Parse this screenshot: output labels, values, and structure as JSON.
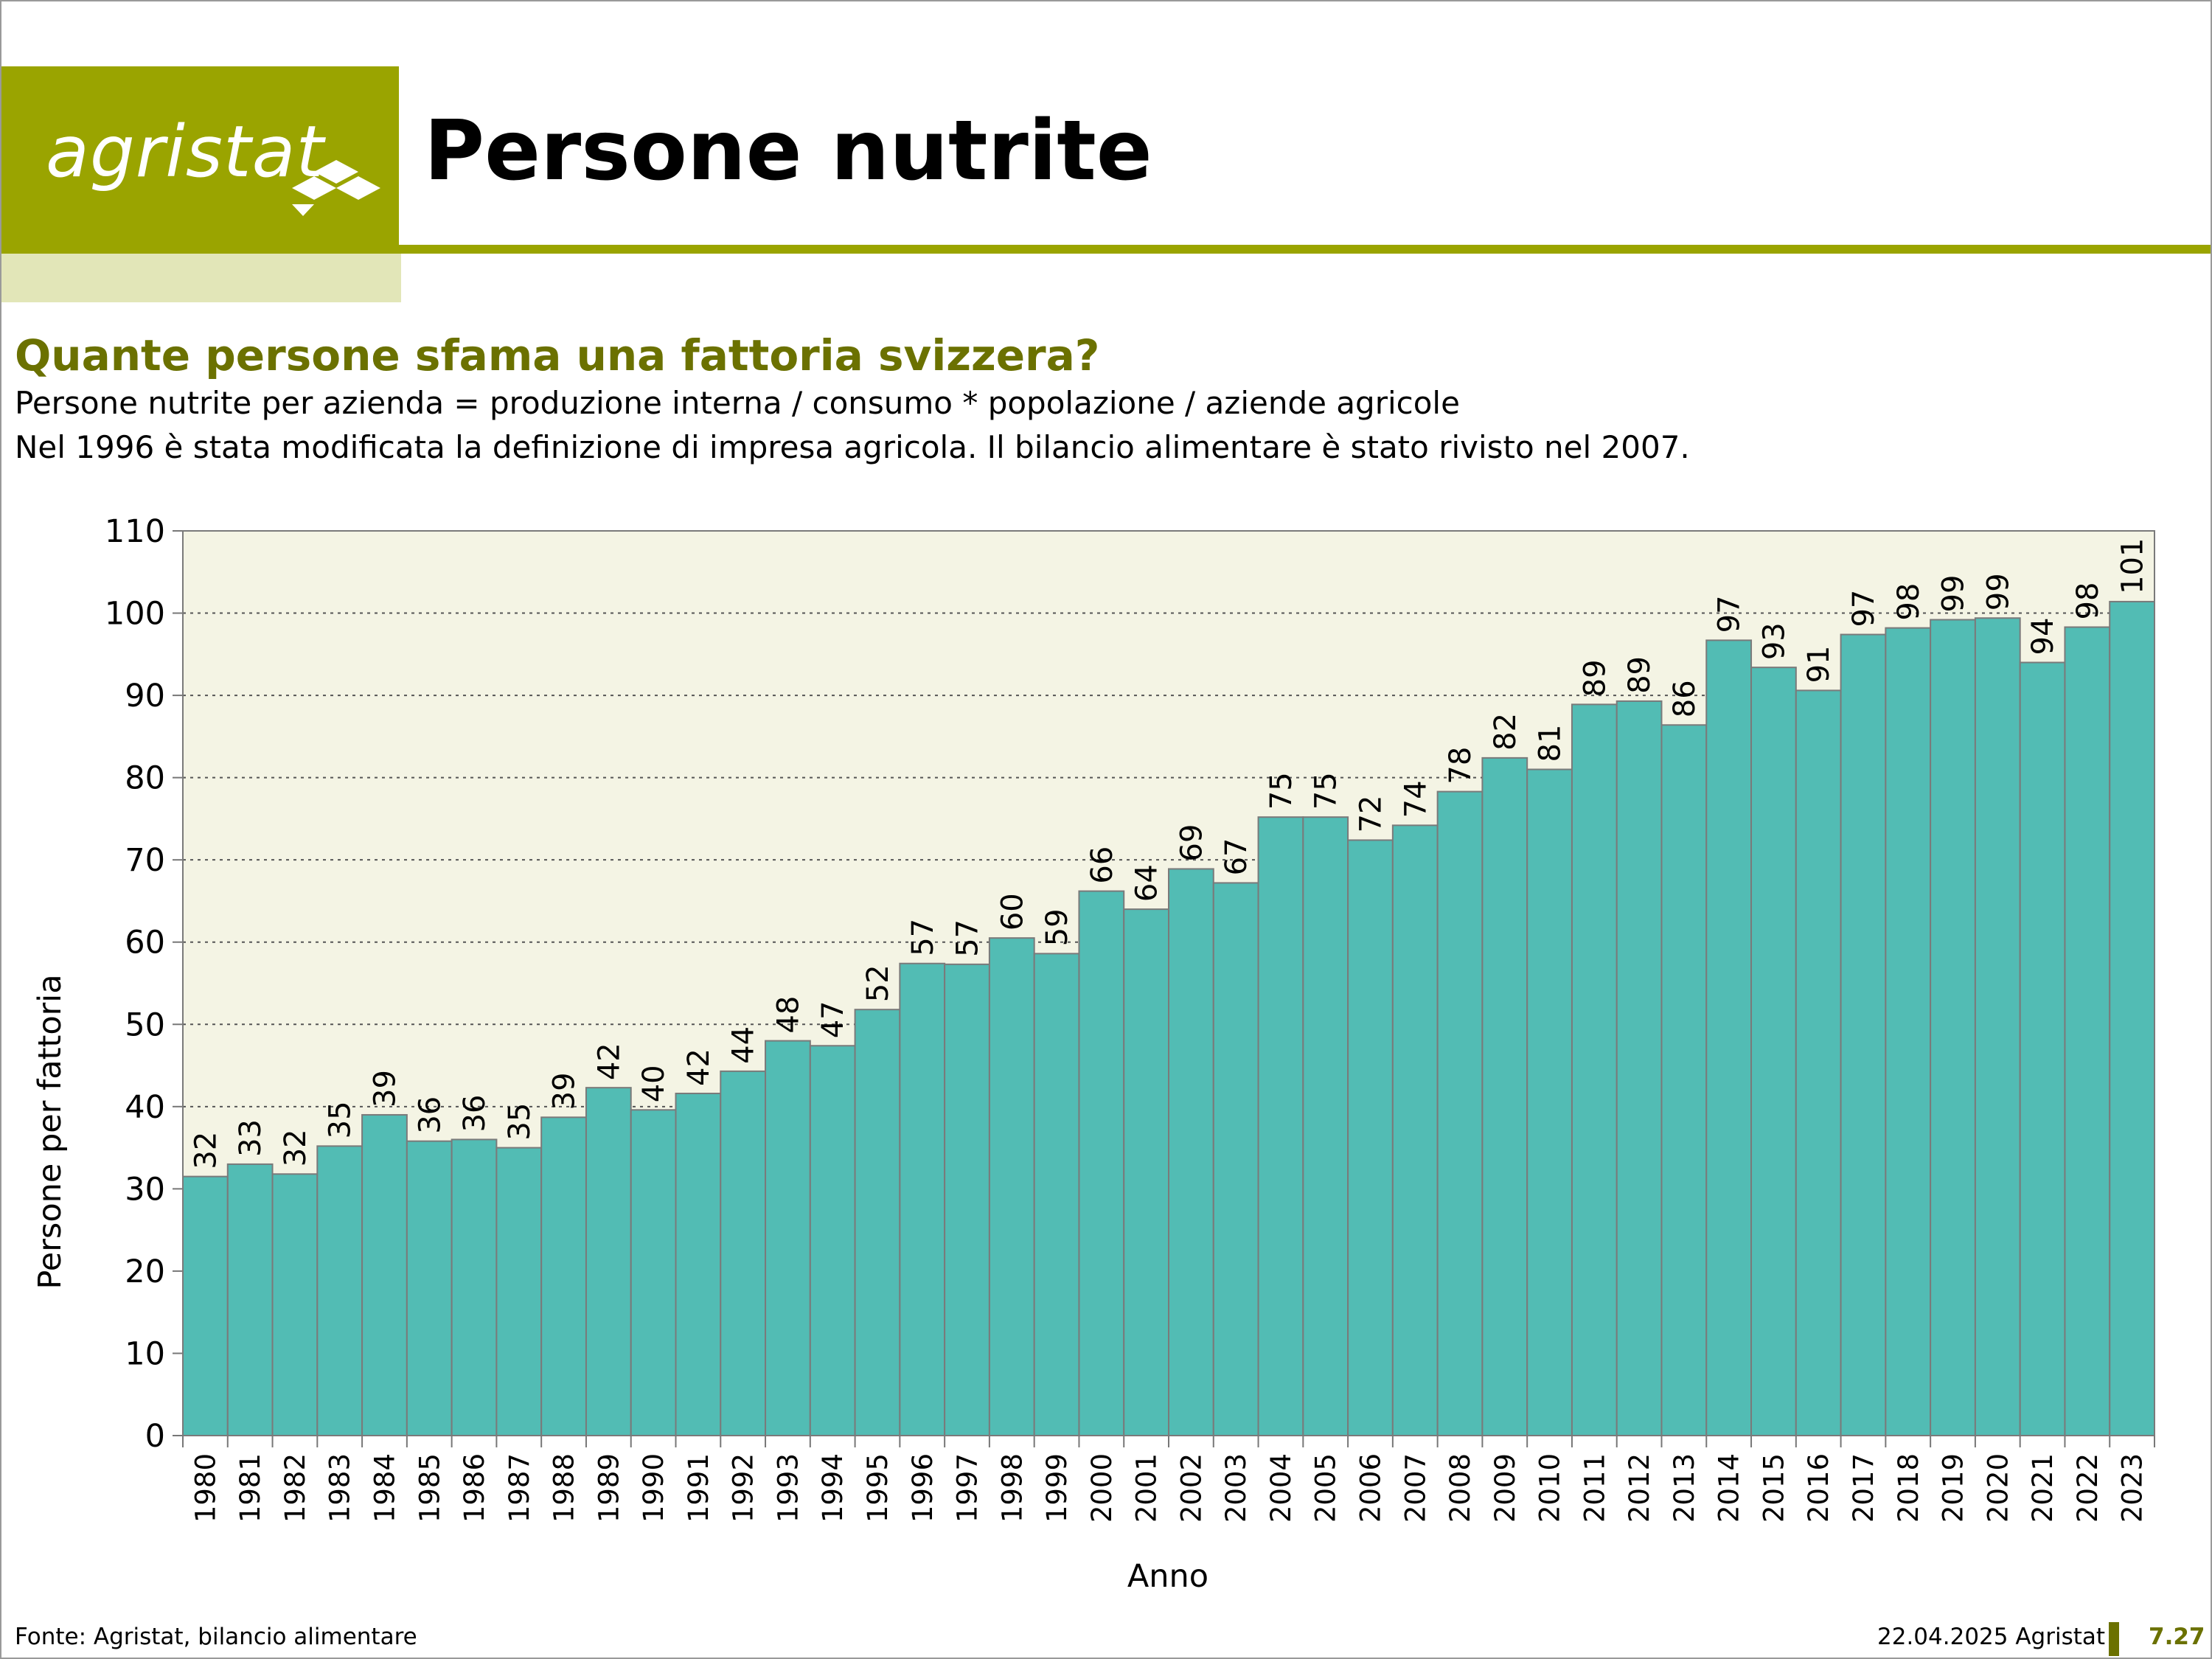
{
  "header": {
    "logo_text": "agristat",
    "title": "Persone nutrite"
  },
  "content": {
    "subtitle": "Quante persone sfama una fattoria svizzera?",
    "description_line1": "Persone nutrite per azienda = produzione interna / consumo * popolazione / aziende agricole",
    "description_line2": "Nel 1996 è stata modificata la definizione di impresa agricola. Il bilancio alimentare è stato rivisto nel 2007."
  },
  "colors": {
    "brand": "#9aa400",
    "brand_light": "#e2e6b8",
    "subtitle": "#6b7100",
    "bar": "#52bcb4",
    "plot_bg": "#f4f4e4"
  },
  "chart_data": {
    "type": "bar",
    "xlabel": "Anno",
    "ylabel": "Persone per fattoria",
    "ylim": [
      0,
      110
    ],
    "yticks": [
      0,
      10,
      20,
      30,
      40,
      50,
      60,
      70,
      80,
      90,
      100,
      110
    ],
    "grid": true,
    "categories": [
      "1980",
      "1981",
      "1982",
      "1983",
      "1984",
      "1985",
      "1986",
      "1987",
      "1988",
      "1989",
      "1990",
      "1991",
      "1992",
      "1993",
      "1994",
      "1995",
      "1996",
      "1997",
      "1998",
      "1999",
      "2000",
      "2001",
      "2002",
      "2003",
      "2004",
      "2005",
      "2006",
      "2007",
      "2008",
      "2009",
      "2010",
      "2011",
      "2012",
      "2013",
      "2014",
      "2015",
      "2016",
      "2017",
      "2018",
      "2019",
      "2020",
      "2021",
      "2022",
      "2023"
    ],
    "values": [
      31.5,
      33,
      31.8,
      35.2,
      39,
      35.8,
      36,
      35,
      38.7,
      42.3,
      39.6,
      41.6,
      44.3,
      48,
      47.4,
      51.8,
      57.4,
      57.3,
      60.5,
      58.6,
      66.2,
      64,
      68.9,
      67.2,
      75.2,
      75.2,
      72.4,
      74.2,
      78.3,
      82.4,
      81,
      88.9,
      89.3,
      86.4,
      96.7,
      93.4,
      90.6,
      97.4,
      98.2,
      99.2,
      99.4,
      94,
      98.3,
      101.4
    ],
    "labels": [
      "32",
      "33",
      "32",
      "35",
      "39",
      "36",
      "36",
      "35",
      "39",
      "42",
      "40",
      "42",
      "44",
      "48",
      "47",
      "52",
      "57",
      "57",
      "60",
      "59",
      "66",
      "64",
      "69",
      "67",
      "75",
      "75",
      "72",
      "74",
      "78",
      "82",
      "81",
      "89",
      "89",
      "86",
      "97",
      "93",
      "91",
      "97",
      "98",
      "99",
      "99",
      "94",
      "98",
      "101"
    ]
  },
  "footer": {
    "source": "Fonte: Agristat, bilancio alimentare",
    "date": "22.04.2025 Agristat",
    "page": "7.27"
  }
}
